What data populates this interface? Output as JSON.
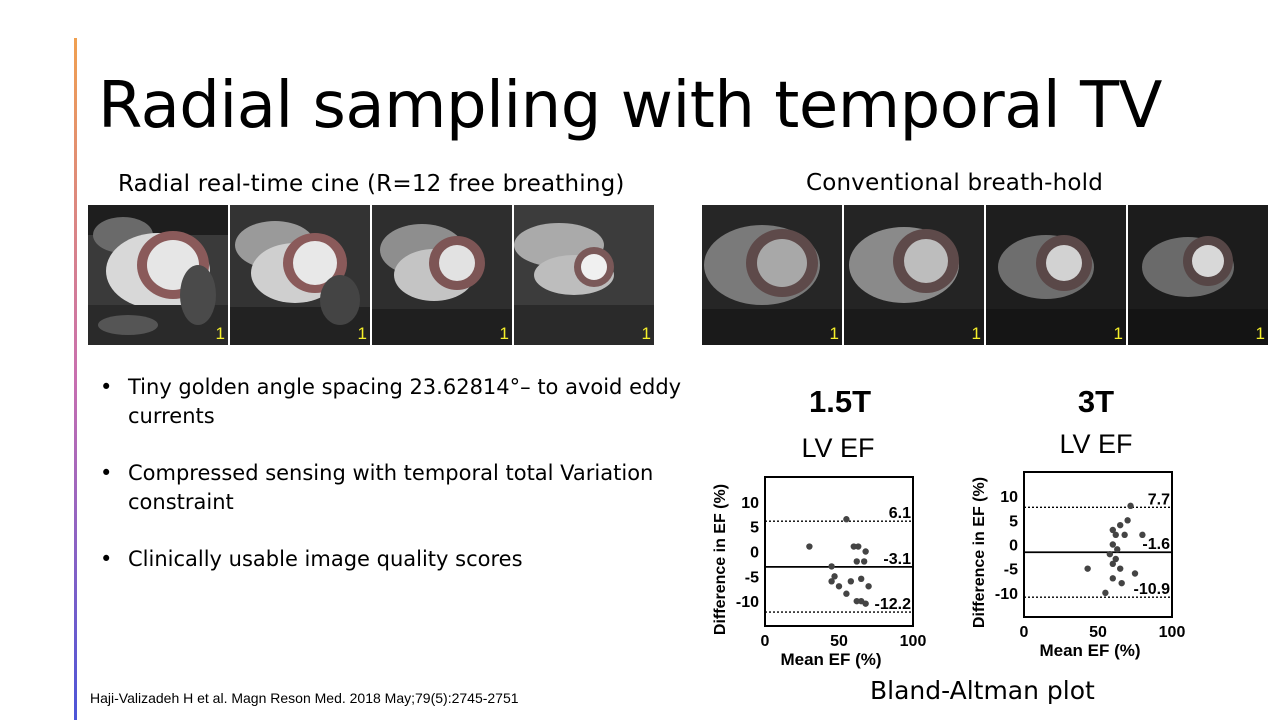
{
  "slide": {
    "title": "Radial sampling with temporal TV",
    "left_caption": "Radial real-time cine (R=12  free breathing)",
    "right_caption": "Conventional breath-hold",
    "frame_label": "1",
    "bullets": [
      "Tiny golden angle spacing 23.62814°– to avoid eddy currents",
      "Compressed sensing with temporal total Variation constraint",
      "Clinically usable image quality scores"
    ],
    "reference": "Haji-Valizadeh H et al. Magn Reson Med. 2018 May;79(5):2745-2751",
    "plot_caption": "Bland-Altman plot",
    "colors": {
      "accent_top": "#f0a050",
      "accent_bottom": "#4b55d8",
      "frame_number": "#f5ef2a"
    }
  },
  "chart_data": [
    {
      "type": "scatter",
      "title": "1.5T",
      "subtitle": "LV EF",
      "xlabel": "Mean EF (%)",
      "ylabel": "Difference in EF (%)",
      "xlim": [
        0,
        100
      ],
      "ylim": [
        -15,
        15
      ],
      "xticks": [
        "0",
        "50",
        "100"
      ],
      "yticks": [
        "10",
        "5",
        "0",
        "-5",
        "-10"
      ],
      "reference_lines": [
        {
          "value": 6.1,
          "label": "6.1",
          "style": "dotted"
        },
        {
          "value": -3.1,
          "label": "-3.1",
          "style": "solid"
        },
        {
          "value": -12.2,
          "label": "-12.2",
          "style": "dotted"
        }
      ],
      "points": [
        [
          30,
          1
        ],
        [
          55,
          6.5
        ],
        [
          45,
          -3
        ],
        [
          47,
          -5
        ],
        [
          45,
          -6
        ],
        [
          50,
          -7
        ],
        [
          55,
          -8.5
        ],
        [
          60,
          1
        ],
        [
          62,
          -2
        ],
        [
          63,
          1
        ],
        [
          68,
          0
        ],
        [
          67,
          -2
        ],
        [
          58,
          -6
        ],
        [
          65,
          -5.5
        ],
        [
          70,
          -7
        ],
        [
          62,
          -10
        ],
        [
          65,
          -10
        ],
        [
          68,
          -10.5
        ]
      ]
    },
    {
      "type": "scatter",
      "title": "3T",
      "subtitle": "LV EF",
      "xlabel": "Mean EF (%)",
      "ylabel": "Difference in EF (%)",
      "xlim": [
        0,
        100
      ],
      "ylim": [
        -15,
        15
      ],
      "xticks": [
        "0",
        "50",
        "100"
      ],
      "yticks": [
        "10",
        "5",
        "0",
        "-5",
        "-10"
      ],
      "reference_lines": [
        {
          "value": 7.7,
          "label": "7.7",
          "style": "dotted"
        },
        {
          "value": -1.6,
          "label": "-1.6",
          "style": "solid"
        },
        {
          "value": -10.9,
          "label": "-10.9",
          "style": "dotted"
        }
      ],
      "points": [
        [
          43,
          -5
        ],
        [
          55,
          -10
        ],
        [
          58,
          -2
        ],
        [
          60,
          -4
        ],
        [
          60,
          -7
        ],
        [
          62,
          -3
        ],
        [
          60,
          0
        ],
        [
          62,
          2
        ],
        [
          65,
          4
        ],
        [
          68,
          2
        ],
        [
          70,
          5
        ],
        [
          72,
          8
        ],
        [
          75,
          -6
        ],
        [
          63,
          -1
        ],
        [
          66,
          -8
        ],
        [
          80,
          2
        ],
        [
          60,
          3
        ],
        [
          65,
          -5
        ]
      ]
    }
  ]
}
